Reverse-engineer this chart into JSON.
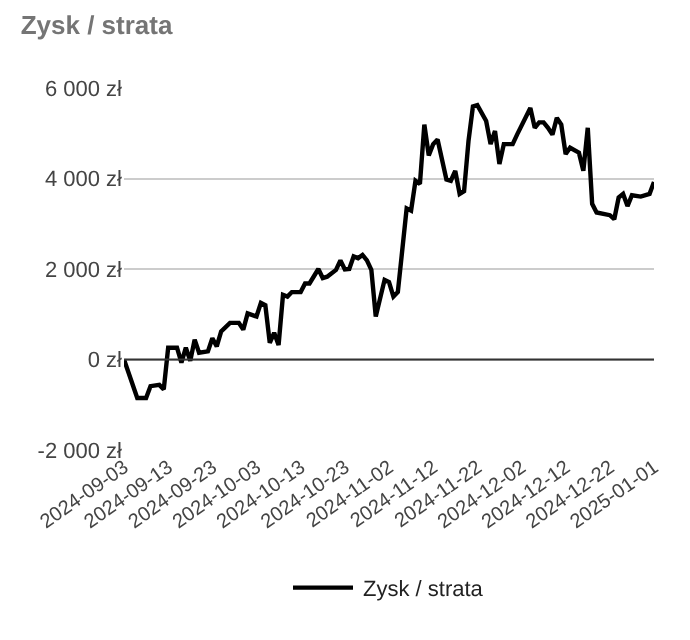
{
  "chart_data": {
    "type": "line",
    "title": "Zysk / strata",
    "x": [
      "2024-09-03",
      "2024-09-06",
      "2024-09-08",
      "2024-09-09",
      "2024-09-11",
      "2024-09-12",
      "2024-09-13",
      "2024-09-15",
      "2024-09-16",
      "2024-09-17",
      "2024-09-18",
      "2024-09-19",
      "2024-09-20",
      "2024-09-22",
      "2024-09-23",
      "2024-09-24",
      "2024-09-25",
      "2024-09-27",
      "2024-09-29",
      "2024-09-30",
      "2024-10-01",
      "2024-10-03",
      "2024-10-04",
      "2024-10-05",
      "2024-10-06",
      "2024-10-07",
      "2024-10-08",
      "2024-10-09",
      "2024-10-10",
      "2024-10-11",
      "2024-10-13",
      "2024-10-14",
      "2024-10-15",
      "2024-10-17",
      "2024-10-18",
      "2024-10-19",
      "2024-10-21",
      "2024-10-22",
      "2024-10-23",
      "2024-10-24",
      "2024-10-25",
      "2024-10-26",
      "2024-10-27",
      "2024-10-28",
      "2024-10-29",
      "2024-10-30",
      "2024-11-01",
      "2024-11-02",
      "2024-11-03",
      "2024-11-04",
      "2024-11-06",
      "2024-11-07",
      "2024-11-08",
      "2024-11-09",
      "2024-11-10",
      "2024-11-11",
      "2024-11-12",
      "2024-11-13",
      "2024-11-15",
      "2024-11-16",
      "2024-11-17",
      "2024-11-18",
      "2024-11-19",
      "2024-11-20",
      "2024-11-21",
      "2024-11-22",
      "2024-11-24",
      "2024-11-25",
      "2024-11-26",
      "2024-11-27",
      "2024-11-28",
      "2024-11-30",
      "2024-12-01",
      "2024-12-04",
      "2024-12-05",
      "2024-12-06",
      "2024-12-07",
      "2024-12-08",
      "2024-12-09",
      "2024-12-10",
      "2024-12-11",
      "2024-12-12",
      "2024-12-13",
      "2024-12-15",
      "2024-12-16",
      "2024-12-17",
      "2024-12-18",
      "2024-12-19",
      "2024-12-22",
      "2024-12-23",
      "2024-12-24",
      "2024-12-25",
      "2024-12-26",
      "2024-12-27",
      "2024-12-29",
      "2024-12-31",
      "2025-01-01"
    ],
    "series": [
      {
        "name": "Zysk / strata",
        "color": "#000000",
        "values": [
          0,
          -850,
          -850,
          -590,
          -560,
          -660,
          260,
          260,
          -70,
          260,
          -30,
          440,
          150,
          180,
          470,
          290,
          620,
          810,
          810,
          660,
          1020,
          950,
          1250,
          1200,
          370,
          590,
          320,
          1430,
          1390,
          1490,
          1490,
          1680,
          1680,
          2000,
          1800,
          1830,
          1980,
          2190,
          1990,
          2000,
          2280,
          2240,
          2310,
          2190,
          1980,
          950,
          1760,
          1710,
          1390,
          1490,
          3340,
          3290,
          3950,
          3880,
          5190,
          4510,
          4760,
          4860,
          3980,
          3950,
          4170,
          3660,
          3720,
          4830,
          5590,
          5620,
          5270,
          4760,
          5050,
          4320,
          4760,
          4760,
          4970,
          5560,
          5120,
          5240,
          5240,
          5120,
          4970,
          5340,
          5190,
          4540,
          4680,
          4570,
          4170,
          5120,
          3440,
          3250,
          3190,
          3100,
          3580,
          3660,
          3390,
          3630,
          3600,
          3660,
          3920
        ]
      }
    ],
    "xlim": [
      "2024-09-03",
      "2025-01-01"
    ],
    "xticks": [
      "2024-09-03",
      "2024-09-13",
      "2024-09-23",
      "2024-10-03",
      "2024-10-13",
      "2024-10-23",
      "2024-11-02",
      "2024-11-12",
      "2024-11-22",
      "2024-12-02",
      "2024-12-12",
      "2024-12-22",
      "2025-01-01"
    ],
    "ylim": [
      -2000,
      6000
    ],
    "yticks": [
      {
        "value": -2000,
        "label": "-2 000 zł"
      },
      {
        "value": 0,
        "label": "0 zł"
      },
      {
        "value": 2000,
        "label": "2 000 zł"
      },
      {
        "value": 4000,
        "label": "4 000 zł"
      },
      {
        "value": 6000,
        "label": "6 000 zł"
      }
    ],
    "ref_lines": [
      {
        "axis": "y",
        "value": 0,
        "label": null,
        "color": "#333333"
      }
    ],
    "grid": "y",
    "legend": "bottom",
    "marker": "none",
    "line_style": "solid"
  }
}
